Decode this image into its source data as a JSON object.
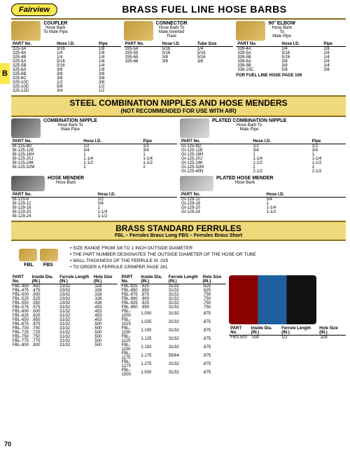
{
  "brand": "Fairview",
  "tab": "B",
  "page_number": "70",
  "titles": {
    "main": "BRASS FUEL LINE HOSE BARBS",
    "steel": "STEEL COMBINATION NIPPLES AND HOSE MENDERS",
    "steel_sub": "(NOT RECOMMENDED FOR USE WITH AIR)",
    "ferrules": "BRASS STANDARD FERRULES",
    "ferrules_sub": "FBL – Ferrules Brass Long   FBS – Ferrules Brass Short"
  },
  "coupler": {
    "name": "COUPLER",
    "desc1": "Hose Barb",
    "desc2": "To Male Pipe",
    "cols": [
      "PART No.",
      "Hose I.D.",
      "Pipe"
    ],
    "rows": [
      [
        "325-3A",
        "3/16",
        "1/8"
      ],
      [
        "325-4A",
        "1/4",
        "1/8"
      ],
      [
        "325-4B",
        "1/4",
        "1/4"
      ],
      [
        "325-5A",
        "5/16",
        "1/8"
      ],
      [
        "325-5B",
        "5/16",
        "1/4"
      ],
      [
        "325-6A",
        "3/8",
        "1/8"
      ],
      [
        "325-6B",
        "3/8",
        "3/8"
      ],
      [
        "325-8C",
        "3/8",
        "3/8"
      ],
      [
        "325-10C",
        "1/2",
        "3/8"
      ],
      [
        "325-10D",
        "5/8",
        "1/2"
      ],
      [
        "325-12D",
        "3/4",
        "1/2"
      ]
    ]
  },
  "connector": {
    "name": "CONNECTOR",
    "desc1": "Hose Barb To",
    "desc2": "Male Inverted",
    "desc3": "Flare",
    "cols": [
      "PART No.",
      "Hose I.D.",
      "Tube Size"
    ],
    "rows": [
      [
        "335-54",
        "5/16",
        "1/4"
      ],
      [
        "335-55",
        "5/16",
        "5/16"
      ],
      [
        "335-65",
        "3/8",
        "5/16"
      ],
      [
        "335-66",
        "3/8",
        "3/8"
      ]
    ]
  },
  "elbow": {
    "name": "90° ELBOW",
    "desc1": "Hose Barb",
    "desc2": "To",
    "desc3": "Male Pipe",
    "cols": [
      "PART No.",
      "Hose I.D.",
      "Pipe"
    ],
    "rows": [
      [
        "339-4A",
        "1/4",
        "1/8"
      ],
      [
        "339-5A",
        "5/16",
        "1/8"
      ],
      [
        "339-5B",
        "5/16",
        "1/4"
      ],
      [
        "339-6A",
        "3/8",
        "1/8"
      ],
      [
        "339-8B",
        "3/8",
        "1/4"
      ],
      [
        "339-10C",
        "5/8",
        "3/8"
      ]
    ],
    "note": "FOR FUEL LINE HOSE PAGE 109"
  },
  "comb_nipple": {
    "name": "COMBINATION NIPPLE",
    "desc1": "Hose Barb To",
    "desc2": "Male  Pipe",
    "cols": [
      "PART No.",
      "Hose I.D.",
      "Pipe"
    ],
    "rows": [
      [
        "BI-125-8D",
        "1/2",
        "1/2"
      ],
      [
        "BI-125-12E",
        "3/4",
        "3/4"
      ],
      [
        "BI-125-16H",
        "1",
        "1"
      ],
      [
        "BI-125-20J",
        "1-1/4",
        "1-1/4"
      ],
      [
        "BI-125-24K",
        "1-1/2",
        "1-1/2"
      ],
      [
        "BI-125-32M",
        "2",
        "2"
      ]
    ]
  },
  "plated_nipple": {
    "name": "PLATED COMBINATION NIPPLE",
    "desc1": "Hose Barb To",
    "desc2": "Male  Pipe",
    "cols": [
      "PART No.",
      "Hose I.D.",
      "Pipe"
    ],
    "rows": [
      [
        "GI-125-8D",
        "1/2",
        "1/2"
      ],
      [
        "GI-125-12E",
        "3/4",
        "3/4"
      ],
      [
        "GI-125-16H",
        "1",
        "1"
      ],
      [
        "GI-125-20J",
        "1-1/4",
        "1-1/4"
      ],
      [
        "GI-125-24K",
        "1-1/2",
        "1-1/2"
      ],
      [
        "GI-125-32M",
        "2",
        "2"
      ],
      [
        "GI-125-40N",
        "2-1/2",
        "2-1/2"
      ]
    ]
  },
  "hose_mender": {
    "name": "HOSE MENDER",
    "desc1": "Hose Barb",
    "cols": [
      "PART No.",
      "Hose I.D."
    ],
    "rows": [
      [
        "BI-129-8",
        "1/2"
      ],
      [
        "BI-129-12",
        "3/4"
      ],
      [
        "BI-129-16",
        "1"
      ],
      [
        "BI-129-20",
        "1-1/4"
      ],
      [
        "BI-129-24",
        "1-1/2"
      ]
    ]
  },
  "plated_mender": {
    "name": "PLATED HOSE MENDER",
    "desc1": "Hose Barb",
    "cols": [
      "PART No.",
      "Hose I.D."
    ],
    "rows": [
      [
        "GI-129-12",
        "3/4"
      ],
      [
        "GI-129-16",
        "1"
      ],
      [
        "GI-129-20",
        "1-1/4"
      ],
      [
        "GI-129-24",
        "1-1/2"
      ]
    ]
  },
  "ferrule_labels": {
    "fbl": "FBL",
    "fbs": "FBS"
  },
  "ferrule_notes": [
    "SIZE RANGE FROM 3/8 TO 1 INCH OUTSIDE DIAMETER",
    "THE PART NUMBER DESIGNATES THE OUTSIDE DIAMETER OF THE HOSE OR TUBE",
    "WALL THICKNESS OF THE FERRULE IS .025",
    "TO ORDER A FERRULE CRIMPER PAGE 261"
  ],
  "ferrule_cols": [
    "PART No.",
    "Inside Dia. (IN.)",
    "Ferrule Length (IN.)",
    "Hole Size (IN.)"
  ],
  "ferrule_t1": [
    [
      "FBL-450",
      ".450",
      "23/32",
      ".328"
    ],
    [
      "FBL-475",
      ".475",
      "23/32",
      ".328"
    ],
    [
      "FBL-500",
      ".500",
      "23/32",
      ".328"
    ],
    [
      "FBL-525",
      ".525",
      "23/32",
      ".328"
    ],
    [
      "FBL-550",
      ".550",
      "23/32",
      ".438"
    ],
    [
      "FBL-575",
      ".575",
      "31/32",
      ".453"
    ],
    [
      "FBL-600",
      ".600",
      "31/32",
      ".453"
    ],
    [
      "FBL-625",
      ".625",
      "31/32",
      ".453"
    ],
    [
      "FBL-650",
      ".650",
      "31/32",
      ".453"
    ],
    [
      "FBL-675",
      ".675",
      "31/32",
      ".500"
    ],
    [
      "FBL-700",
      ".700",
      "31/32",
      ".500"
    ],
    [
      "FBL-725",
      ".725",
      "31/32",
      ".500"
    ],
    [
      "FBL-750",
      ".750",
      "31/32",
      ".500"
    ],
    [
      "FBL-775",
      ".775",
      "31/32",
      ".500"
    ],
    [
      "FBL-800",
      ".800",
      "31/32",
      ".500"
    ]
  ],
  "ferrule_t2": [
    [
      "FBL-825",
      ".825",
      "31/32",
      ".625"
    ],
    [
      "FBL-850",
      ".850",
      "31/32",
      ".625"
    ],
    [
      "FBL-875",
      ".875",
      "31/32",
      ".750"
    ],
    [
      "FBL-900",
      ".900",
      "31/32",
      ".750"
    ],
    [
      "FBL-925",
      ".925",
      "31/32",
      ".750"
    ],
    [
      "FBL-950",
      ".950",
      "31/32",
      ".750"
    ],
    [
      "FBL-1000",
      "1.000",
      "31/32",
      ".875"
    ],
    [
      "FBL-1025",
      "1.025",
      "31/32",
      ".875"
    ],
    [
      "FBL-1100",
      "1.100",
      "31/32",
      ".875"
    ],
    [
      "FBL-1125",
      "1.125",
      "31/32",
      ".875"
    ],
    [
      "FBL-1150",
      "1.150",
      "31/32",
      ".875"
    ],
    [
      "FBL-1175",
      "1.175",
      "55/64",
      ".875"
    ],
    [
      "FBL-1275",
      "1.275",
      "31/32",
      ".875"
    ],
    [
      "FBL-1500",
      "1.500",
      "31/32",
      ".875"
    ]
  ],
  "ferrule_t3": [
    [
      "FBS-500",
      ".500",
      "1/2",
      ".328"
    ]
  ],
  "colors": {
    "gold_band": "#efd97a",
    "divider": "#8a6d1f",
    "tab": "#fce94f",
    "brass": "#c49a3a",
    "steel": "#808080"
  }
}
